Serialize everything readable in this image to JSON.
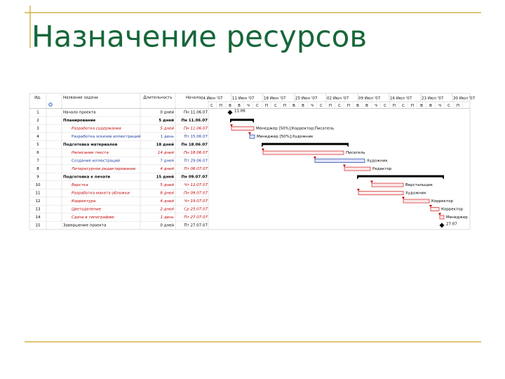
{
  "header": {
    "title": "Назначение ресурсов"
  },
  "table": {
    "columns": [
      "Ид.",
      "Название задачи",
      "Длительность",
      "Начало"
    ],
    "rows": [
      {
        "id": "1",
        "name": "Начало проекта",
        "duration": "0 дней",
        "start": "Пн 11.06.07",
        "bar_label": "11.06"
      },
      {
        "id": "2",
        "name": "Планирование",
        "duration": "5 дней",
        "start": "Пн 11.06.07"
      },
      {
        "id": "3",
        "name": "Разработка содержания",
        "duration": "5 дней",
        "start": "Пн 11.06.07",
        "bar_label": "Менеджер [50%];Корректор;Писатель"
      },
      {
        "id": "4",
        "name": "Разработка эскизов иллюстраций",
        "duration": "1 день",
        "start": "Пт 15.06.07",
        "bar_label": "Менеджер [50%];Художник"
      },
      {
        "id": "5",
        "name": "Подготовка материалов",
        "duration": "18 дней",
        "start": "Пн 18.06.07"
      },
      {
        "id": "6",
        "name": "Написание текста",
        "duration": "14 дней",
        "start": "Пн 18.06.07",
        "bar_label": "Писатель"
      },
      {
        "id": "7",
        "name": "Создание иллюстраций",
        "duration": "7 дней",
        "start": "Пт 29.06.07",
        "bar_label": "Художник"
      },
      {
        "id": "8",
        "name": "Литературное редактирование",
        "duration": "4 дней",
        "start": "Пт 06.07.07",
        "bar_label": "Редактор"
      },
      {
        "id": "9",
        "name": "Подготовка к печати",
        "duration": "15 дней",
        "start": "Пн 09.07.07"
      },
      {
        "id": "10",
        "name": "Верстка",
        "duration": "5 дней",
        "start": "Чт 12.07.07",
        "bar_label": "Верстальщик"
      },
      {
        "id": "11",
        "name": "Разработка макета обложки",
        "duration": "8 дней",
        "start": "Пн 09.07.07",
        "bar_label": "Художник"
      },
      {
        "id": "12",
        "name": "Корректура",
        "duration": "4 дней",
        "start": "Чт 19.07.07",
        "bar_label": "Корректор"
      },
      {
        "id": "13",
        "name": "Цветоделение",
        "duration": "2 дней",
        "start": "Ср 25.07.07",
        "bar_label": "Корректор"
      },
      {
        "id": "14",
        "name": "Сдача в типографию",
        "duration": "1 день",
        "start": "Пт 27.07.07",
        "bar_label": "Менеджер"
      },
      {
        "id": "15",
        "name": "Завершение проекта",
        "duration": "0 дней",
        "start": "Пт 27.07.07",
        "bar_label": "27.07"
      }
    ]
  },
  "timeline": {
    "weeks": [
      "04 Июн '07",
      "11 Июн '07",
      "18 Июн '07",
      "25 Июн '07",
      "02 Июл '07",
      "09 Июл '07",
      "16 Июл '07",
      "23 Июл '07",
      "30 Июл '07"
    ],
    "days": [
      "С",
      "П",
      "В",
      "В",
      "Ч",
      "С",
      "П",
      "С",
      "П",
      "В",
      "В",
      "Ч",
      "С",
      "П",
      "С",
      "П",
      "В",
      "В",
      "Ч",
      "С",
      "П",
      "С",
      "П",
      "В",
      "В",
      "Ч",
      "С",
      "П"
    ]
  }
}
